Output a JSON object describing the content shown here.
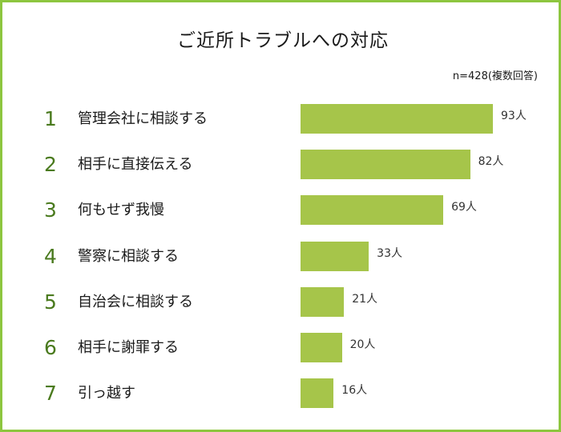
{
  "chart_data": {
    "type": "bar",
    "orientation": "horizontal",
    "title": "ご近所トラブルへの対応",
    "note": "n=428(複数回答)",
    "unit": "人",
    "xlim": [
      0,
      100
    ],
    "bar_color": "#a6c54a",
    "rank_color": "#4a7a1e",
    "frame_color": "#8dc63f",
    "items": [
      {
        "rank": "1",
        "label": "管理会社に相談する",
        "value": 93,
        "value_label": "93人"
      },
      {
        "rank": "2",
        "label": "相手に直接伝える",
        "value": 82,
        "value_label": "82人"
      },
      {
        "rank": "3",
        "label": "何もせず我慢",
        "value": 69,
        "value_label": "69人"
      },
      {
        "rank": "4",
        "label": "警察に相談する",
        "value": 33,
        "value_label": "33人"
      },
      {
        "rank": "5",
        "label": "自治会に相談する",
        "value": 21,
        "value_label": "21人"
      },
      {
        "rank": "6",
        "label": "相手に謝罪する",
        "value": 20,
        "value_label": "20人"
      },
      {
        "rank": "7",
        "label": "引っ越す",
        "value": 16,
        "value_label": "16人"
      }
    ]
  }
}
